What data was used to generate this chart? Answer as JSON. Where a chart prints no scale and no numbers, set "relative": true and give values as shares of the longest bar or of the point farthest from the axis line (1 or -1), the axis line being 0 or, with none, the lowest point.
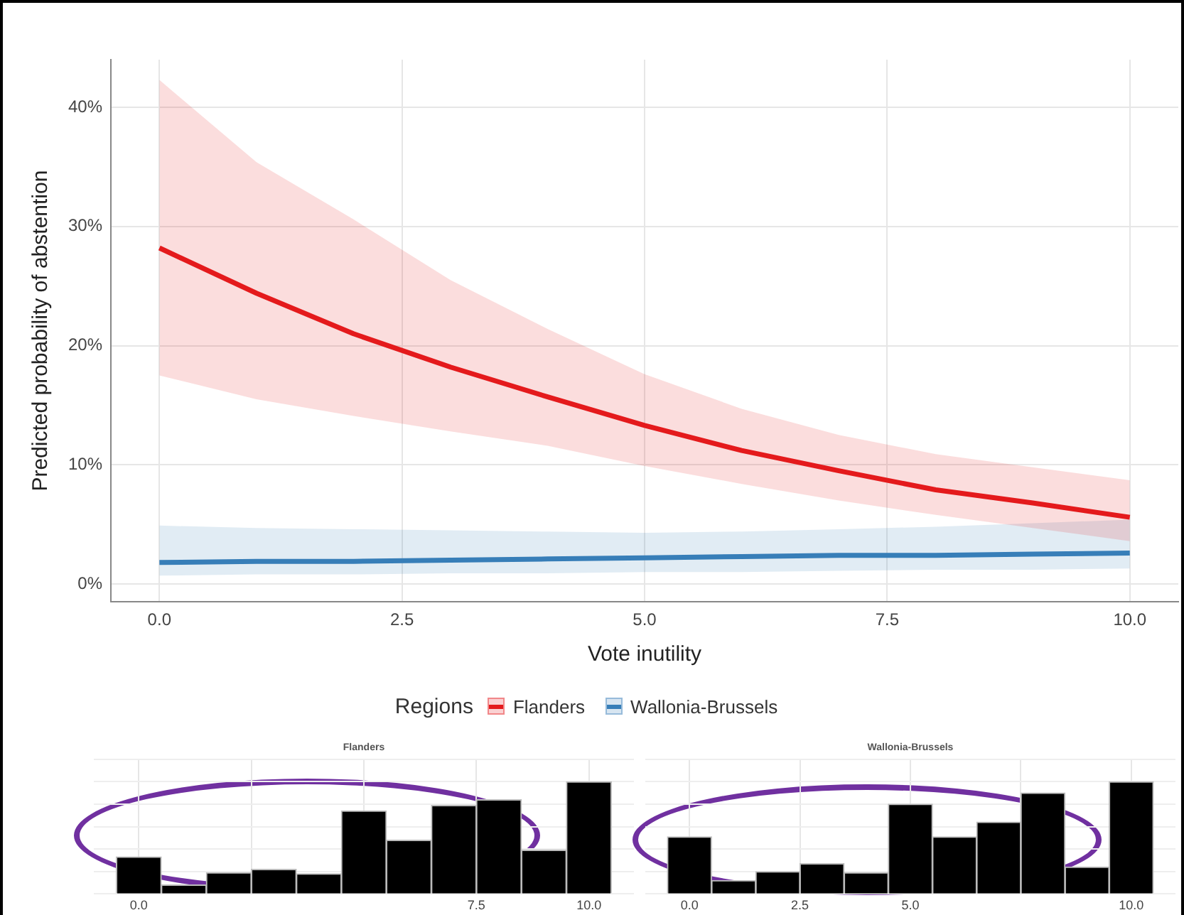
{
  "chart_data": [
    {
      "type": "line",
      "xlabel": "Vote inutility",
      "ylabel": "Predicted probability of abstention",
      "legend_title": "Regions",
      "legend": "bottom",
      "grid": true,
      "x": [
        0,
        1,
        2,
        3,
        4,
        5,
        6,
        7,
        8,
        9,
        10
      ],
      "xlim": [
        -0.5,
        10.5
      ],
      "xticks": [
        {
          "value": 0,
          "label": "0.0"
        },
        {
          "value": 2.5,
          "label": "2.5"
        },
        {
          "value": 5,
          "label": "5.0"
        },
        {
          "value": 7.5,
          "label": "7.5"
        },
        {
          "value": 10,
          "label": "10.0"
        }
      ],
      "ylim": [
        -1.5,
        44
      ],
      "yticks": [
        {
          "value": 0,
          "label": "0%"
        },
        {
          "value": 10,
          "label": "10%"
        },
        {
          "value": 20,
          "label": "20%"
        },
        {
          "value": 30,
          "label": "30%"
        },
        {
          "value": 40,
          "label": "40%"
        }
      ],
      "series": [
        {
          "name": "Flanders",
          "color": "#e41a1c",
          "values": [
            28.2,
            24.4,
            21.0,
            18.2,
            15.7,
            13.3,
            11.2,
            9.5,
            7.9,
            6.8,
            5.6
          ],
          "lower": [
            17.5,
            15.5,
            14.1,
            12.8,
            11.6,
            9.9,
            8.4,
            7.0,
            5.8,
            4.7,
            3.6
          ],
          "upper": [
            42.3,
            35.4,
            30.6,
            25.5,
            21.4,
            17.6,
            14.7,
            12.5,
            10.9,
            9.8,
            8.7
          ]
        },
        {
          "name": "Wallonia-Brussels",
          "color": "#377eb8",
          "values": [
            1.8,
            1.9,
            1.9,
            2.0,
            2.1,
            2.2,
            2.3,
            2.4,
            2.4,
            2.5,
            2.6
          ],
          "lower": [
            0.7,
            0.8,
            0.8,
            0.9,
            0.9,
            1.0,
            1.0,
            1.1,
            1.2,
            1.2,
            1.3
          ],
          "upper": [
            4.9,
            4.7,
            4.6,
            4.5,
            4.4,
            4.3,
            4.4,
            4.6,
            4.8,
            5.1,
            5.4
          ]
        }
      ]
    },
    {
      "type": "bar",
      "title": "Flanders",
      "relative": true,
      "grid": true,
      "tick_labels": "x",
      "color": "#000000",
      "x": [
        0,
        1,
        2,
        3,
        4,
        5,
        6,
        7,
        8,
        9,
        10
      ],
      "values": [
        0.33,
        0.08,
        0.19,
        0.22,
        0.18,
        0.74,
        0.48,
        0.79,
        0.84,
        0.39,
        1
      ],
      "xlim": [
        -1,
        11
      ],
      "xticks": [
        {
          "value": 0,
          "label": "0.0"
        },
        {
          "value": 2.5,
          "label": null
        },
        {
          "value": 5,
          "label": null
        },
        {
          "value": 7.5,
          "label": "7.5"
        },
        {
          "value": 10,
          "label": "10.0"
        }
      ]
    },
    {
      "type": "bar",
      "title": "Wallonia-Brussels",
      "relative": true,
      "grid": true,
      "tick_labels": "x",
      "color": "#000000",
      "x": [
        0,
        1,
        2,
        3,
        4,
        5,
        6,
        7,
        8,
        9,
        10
      ],
      "values": [
        0.51,
        0.12,
        0.2,
        0.27,
        0.19,
        0.8,
        0.51,
        0.64,
        0.9,
        0.24,
        1
      ],
      "xlim": [
        -1,
        11
      ],
      "xticks": [
        {
          "value": 0,
          "label": "0.0"
        },
        {
          "value": 2.5,
          "label": "2.5"
        },
        {
          "value": 5,
          "label": "5.0"
        },
        {
          "value": 7.5,
          "label": null
        },
        {
          "value": 10,
          "label": "10.0"
        }
      ]
    }
  ]
}
